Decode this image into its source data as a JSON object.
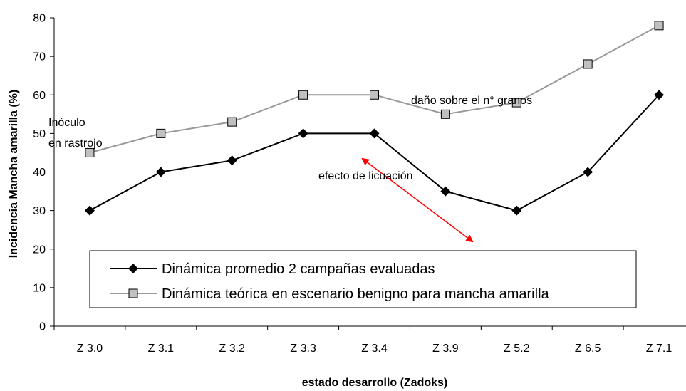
{
  "chart_data": {
    "type": "line",
    "categories": [
      "Z 3.0",
      "Z 3.1",
      "Z 3.2",
      "Z 3.3",
      "Z 3.4",
      "Z 3.9",
      "Z 5.2",
      "Z 6.5",
      "Z 7.1"
    ],
    "series": [
      {
        "name": "Dinámica promedio 2 campañas evaluadas",
        "values": [
          30,
          40,
          43,
          50,
          50,
          35,
          30,
          40,
          60
        ],
        "color": "#000000",
        "marker": "diamond"
      },
      {
        "name": "Dinámica teórica en escenario benigno para mancha amarilla",
        "values": [
          45,
          50,
          53,
          60,
          60,
          55,
          58,
          68,
          78
        ],
        "color": "#999999",
        "marker": "square"
      }
    ],
    "xlabel": "estado desarrollo (Zadoks)",
    "ylabel": "Incidencia Mancha amarilla (%)",
    "ylim": [
      0,
      80
    ],
    "yticks": [
      0,
      10,
      20,
      30,
      40,
      50,
      60,
      70,
      80
    ],
    "grid": false,
    "legend_position": "bottom-inside",
    "annotations": {
      "inoculo_line1": "Inóculo",
      "inoculo_line2": "en rastrojo",
      "dano": "daño sobre el n° granos",
      "efecto": "efecto de licuación"
    },
    "arrow_color": "#ff0000"
  }
}
